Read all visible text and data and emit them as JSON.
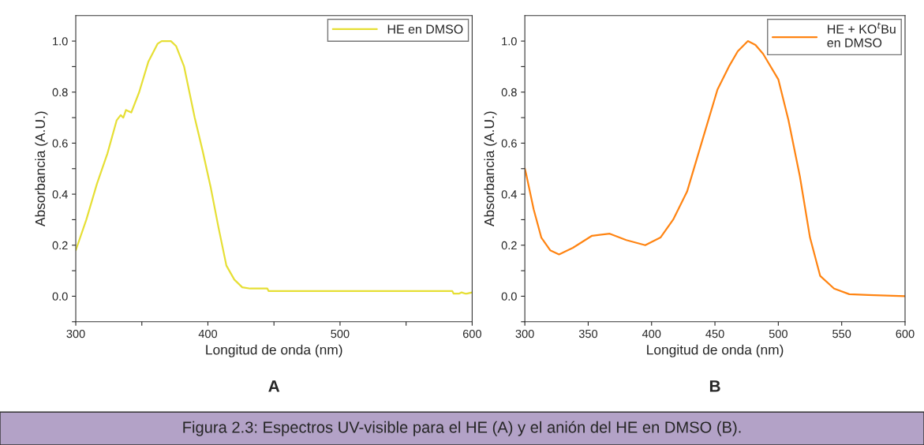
{
  "chart_data": [
    {
      "type": "line",
      "xlabel": "Longitud de onda (nm)",
      "ylabel": "Absorbancia (A.U.)",
      "annotations": [
        "A"
      ],
      "xlim": [
        300,
        600
      ],
      "ylim": [
        -0.1,
        1.1
      ],
      "xticks": [
        300,
        {
          "value": 350,
          "label": null
        },
        400,
        {
          "value": 450,
          "label": null
        },
        500,
        {
          "value": 550,
          "label": null
        },
        600
      ],
      "yticks": [
        {
          "value": -0.1,
          "label": null
        },
        {
          "value": 0.0,
          "label": "0.0"
        },
        {
          "value": 0.1,
          "label": null
        },
        0.2,
        {
          "value": 0.3,
          "label": null
        },
        0.4,
        {
          "value": 0.5,
          "label": null
        },
        0.6,
        {
          "value": 0.7,
          "label": null
        },
        0.8,
        {
          "value": 0.9,
          "label": null
        },
        {
          "value": 1.0,
          "label": "1.0"
        }
      ],
      "legend": "top right",
      "grid": false,
      "series": [
        {
          "name": "HE en DMSO",
          "color": "#e6df35",
          "x": [
            300,
            308,
            316,
            324,
            331,
            334,
            336,
            338,
            342,
            348,
            355,
            362,
            365,
            372,
            376,
            382,
            390,
            396,
            402,
            408,
            414,
            420,
            426,
            432,
            445,
            446,
            447,
            585,
            586,
            590,
            592,
            595,
            596,
            600
          ],
          "values": [
            0.18,
            0.3,
            0.44,
            0.56,
            0.69,
            0.71,
            0.7,
            0.73,
            0.72,
            0.8,
            0.92,
            0.99,
            1.0,
            1.0,
            0.98,
            0.9,
            0.7,
            0.57,
            0.43,
            0.27,
            0.12,
            0.065,
            0.035,
            0.03,
            0.03,
            0.02,
            0.02,
            0.02,
            0.01,
            0.01,
            0.015,
            0.01,
            0.01,
            0.015
          ]
        }
      ]
    },
    {
      "type": "line",
      "xlabel": "Longitud de onda (nm)",
      "ylabel": "Absorbancia (A.U.)",
      "annotations": [
        "B",
        "Figura 2.3: Espectros UV-visible para el HE (A) y el anión del HE en DMSO (B)."
      ],
      "xlim": [
        300,
        600
      ],
      "ylim": [
        -0.1,
        1.1
      ],
      "xticks": [
        300,
        350,
        400,
        450,
        500,
        550,
        600
      ],
      "yticks": [
        {
          "value": -0.1,
          "label": null
        },
        {
          "value": 0.0,
          "label": "0.0"
        },
        {
          "value": 0.1,
          "label": null
        },
        0.2,
        {
          "value": 0.3,
          "label": null
        },
        0.4,
        {
          "value": 0.5,
          "label": null
        },
        0.6,
        {
          "value": 0.7,
          "label": null
        },
        0.8,
        {
          "value": 0.9,
          "label": null
        },
        {
          "value": 1.0,
          "label": "1.0"
        }
      ],
      "legend": "top right",
      "grid": false,
      "series": [
        {
          "name": "HE + KO$^{t}$Bu\nen DMSO",
          "color": "#ff8412",
          "x": [
            300,
            301,
            307,
            313,
            320,
            327,
            338,
            353,
            367,
            380,
            395,
            407,
            417,
            428,
            440,
            452,
            461,
            468,
            476,
            482,
            488,
            500,
            508,
            517,
            525,
            533,
            544,
            556,
            571,
            600
          ],
          "values": [
            0.5,
            0.48,
            0.34,
            0.23,
            0.18,
            0.164,
            0.19,
            0.237,
            0.245,
            0.22,
            0.2,
            0.23,
            0.3,
            0.41,
            0.61,
            0.81,
            0.9,
            0.96,
            1.0,
            0.985,
            0.95,
            0.85,
            0.69,
            0.47,
            0.23,
            0.08,
            0.03,
            0.008,
            0.005,
            0.0
          ]
        }
      ]
    }
  ]
}
